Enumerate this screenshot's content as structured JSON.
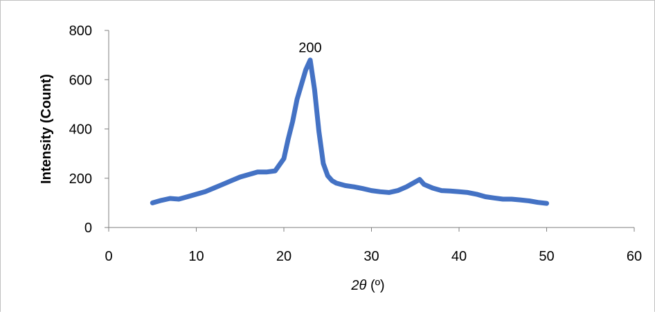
{
  "chart_data": {
    "type": "line",
    "xlabel_prefix": "2",
    "xlabel_symbol": "θ",
    "xlabel_unit": " (º)",
    "ylabel": "Intensity (Count)",
    "xlim": [
      0,
      60
    ],
    "ylim": [
      0,
      800
    ],
    "x_ticks": [
      "0",
      "10",
      "20",
      "30",
      "40",
      "50",
      "60"
    ],
    "y_ticks": [
      "0",
      "200",
      "400",
      "600",
      "800"
    ],
    "annotation": {
      "text": "200",
      "x": 23,
      "y": 700
    },
    "grid": false,
    "legend": "none",
    "series_color": "#4472c4",
    "series": [
      {
        "x": [
          5,
          6,
          7,
          8,
          9,
          10,
          11,
          12,
          13,
          14,
          15,
          16,
          17,
          18,
          19,
          20,
          20.5,
          21,
          21.5,
          22,
          22.5,
          23,
          23.5,
          24,
          24.5,
          25,
          25.5,
          26,
          27,
          28,
          29,
          30,
          31,
          32,
          33,
          34,
          35,
          35.5,
          36,
          37,
          38,
          39,
          40,
          41,
          42,
          43,
          44,
          45,
          46,
          47,
          48,
          49,
          50
        ],
        "y": [
          100,
          110,
          118,
          115,
          125,
          135,
          145,
          160,
          175,
          190,
          205,
          215,
          225,
          225,
          230,
          280,
          360,
          430,
          520,
          580,
          640,
          680,
          560,
          390,
          260,
          210,
          190,
          180,
          170,
          165,
          158,
          150,
          145,
          142,
          150,
          165,
          185,
          195,
          175,
          160,
          150,
          148,
          145,
          142,
          135,
          125,
          120,
          115,
          115,
          112,
          108,
          102,
          98
        ]
      }
    ]
  }
}
